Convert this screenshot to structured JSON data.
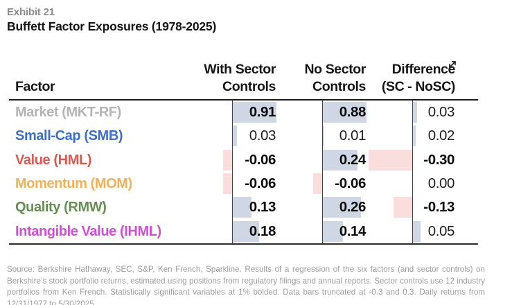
{
  "exhibit": {
    "label": "Exhibit 21",
    "title": "Buffett Factor Exposures (1978-2025)"
  },
  "table": {
    "factor_header": "Factor",
    "columns": [
      {
        "line1": "With Sector",
        "line2": "Controls"
      },
      {
        "line1": "No Sector",
        "line2": "Controls"
      },
      {
        "line1": "Difference",
        "line2": "(SC - NoSC)"
      }
    ],
    "rows": [
      {
        "factor": "Market (MKT-RF)",
        "color": "#b4b4b6",
        "cells": [
          {
            "text": "0.91",
            "value": 0.91,
            "bold": true
          },
          {
            "text": "0.88",
            "value": 0.88,
            "bold": true
          },
          {
            "text": "0.03",
            "value": 0.03,
            "bold": false
          }
        ]
      },
      {
        "factor": "Small-Cap (SMB)",
        "color": "#3b6fca",
        "cells": [
          {
            "text": "0.03",
            "value": 0.03,
            "bold": false
          },
          {
            "text": "0.01",
            "value": 0.01,
            "bold": false
          },
          {
            "text": "0.02",
            "value": 0.02,
            "bold": false
          }
        ]
      },
      {
        "factor": "Value (HML)",
        "color": "#e0574f",
        "cells": [
          {
            "text": "-0.06",
            "value": -0.06,
            "bold": true
          },
          {
            "text": "0.24",
            "value": 0.24,
            "bold": true
          },
          {
            "text": "-0.30",
            "value": -0.3,
            "bold": true
          }
        ]
      },
      {
        "factor": "Momentum (MOM)",
        "color": "#efb257",
        "cells": [
          {
            "text": "-0.06",
            "value": -0.06,
            "bold": true
          },
          {
            "text": "-0.06",
            "value": -0.06,
            "bold": true
          },
          {
            "text": "0.00",
            "value": 0.0,
            "bold": false
          }
        ]
      },
      {
        "factor": "Quality (RMW)",
        "color": "#648f4f",
        "cells": [
          {
            "text": "0.13",
            "value": 0.13,
            "bold": true
          },
          {
            "text": "0.26",
            "value": 0.26,
            "bold": true
          },
          {
            "text": "-0.13",
            "value": -0.13,
            "bold": true
          }
        ]
      },
      {
        "factor": "Intangible Value (IHML)",
        "color": "#d04fd5",
        "cells": [
          {
            "text": "0.18",
            "value": 0.18,
            "bold": true
          },
          {
            "text": "0.14",
            "value": 0.14,
            "bold": true
          },
          {
            "text": "0.05",
            "value": 0.05,
            "bold": false
          }
        ]
      }
    ]
  },
  "colors": {
    "positive_bar": "#cfd7e4",
    "negative_bar": "#fadedd",
    "rule": "#1c1c1c",
    "baseline": "#454545",
    "title_gray": "#8b8b8b",
    "text_black": "#141414",
    "footnote_gray": "#9c9c9c"
  },
  "icons": {
    "expand": "expand-diagonal-arrows-icon"
  },
  "footnote": "Source: Berkshire Hathaway, SEC, S&P, Ken French, Sparkline. Results of a regression of the six factors (and sector controls) on Berkshire’s stock portfolio returns, estimated using positions from regulatory filings and annual reports. Sector controls use 12 industry portfolios from Ken French. Statistically significant variables at 1% bolded. Data bars truncated at -0.3 and 0.3. Daily returns from 12/31/1977 to 5/30/2025.",
  "chart_data": {
    "type": "table",
    "title": "Buffett Factor Exposures (1978-2025)",
    "categories": [
      "Market (MKT-RF)",
      "Small-Cap (SMB)",
      "Value (HML)",
      "Momentum (MOM)",
      "Quality (RMW)",
      "Intangible Value (IHML)"
    ],
    "series": [
      {
        "name": "With Sector Controls",
        "values": [
          0.91,
          0.03,
          -0.06,
          -0.06,
          0.13,
          0.18
        ]
      },
      {
        "name": "No Sector Controls",
        "values": [
          0.88,
          0.01,
          0.24,
          -0.06,
          0.26,
          0.14
        ]
      },
      {
        "name": "Difference (SC - NoSC)",
        "values": [
          0.03,
          0.02,
          -0.3,
          0.0,
          -0.13,
          0.05
        ]
      }
    ],
    "bold_significant_at_1pct": [
      [
        true,
        true,
        false
      ],
      [
        false,
        false,
        false
      ],
      [
        true,
        true,
        true
      ],
      [
        true,
        true,
        false
      ],
      [
        true,
        true,
        true
      ],
      [
        true,
        true,
        false
      ]
    ],
    "bar_range": [
      -0.3,
      0.3
    ],
    "notes": "in-cell data bars, positive=light blue, negative=light pink, truncated at ±0.3"
  }
}
